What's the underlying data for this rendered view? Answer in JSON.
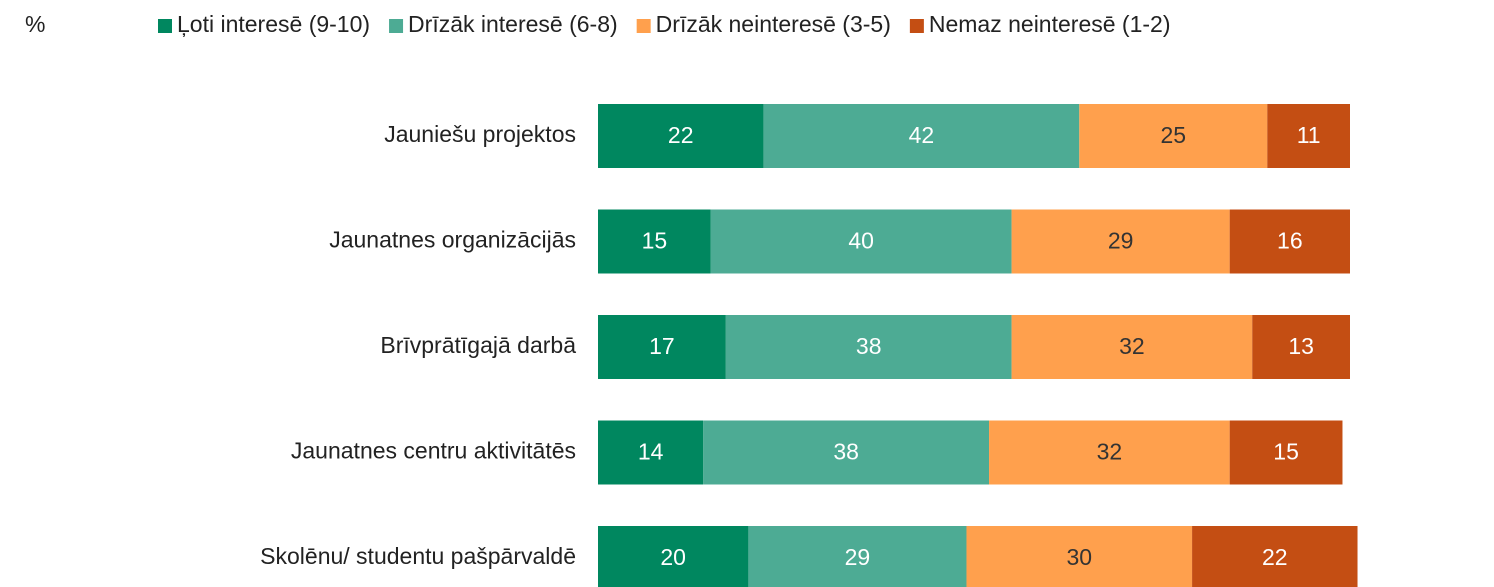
{
  "chart_data": {
    "type": "stacked_barh",
    "axis_label": "%",
    "categories": [
      "Jauniešu projektos",
      "Jaunatnes organizācijās",
      "Brīvprātīgajā darbā",
      "Jaunatnes centru aktivitātēs",
      "Skolēnu/ studentu pašpārvaldē"
    ],
    "series": [
      {
        "name": "Ļoti interesē (9-10)",
        "color": "#00875f",
        "values": [
          22,
          15,
          17,
          14,
          20
        ]
      },
      {
        "name": "Drīzāk interesē (6-8)",
        "color": "#4dab94",
        "values": [
          42,
          40,
          38,
          38,
          29
        ]
      },
      {
        "name": "Drīzāk neinteresē (3-5)",
        "color": "#ffa04d",
        "values": [
          25,
          29,
          32,
          32,
          30
        ]
      },
      {
        "name": "Nemaz neinteresē (1-2)",
        "color": "#c44e13",
        "values": [
          11,
          16,
          13,
          15,
          22
        ]
      }
    ],
    "xlim": [
      0,
      100
    ],
    "legend": "top"
  }
}
